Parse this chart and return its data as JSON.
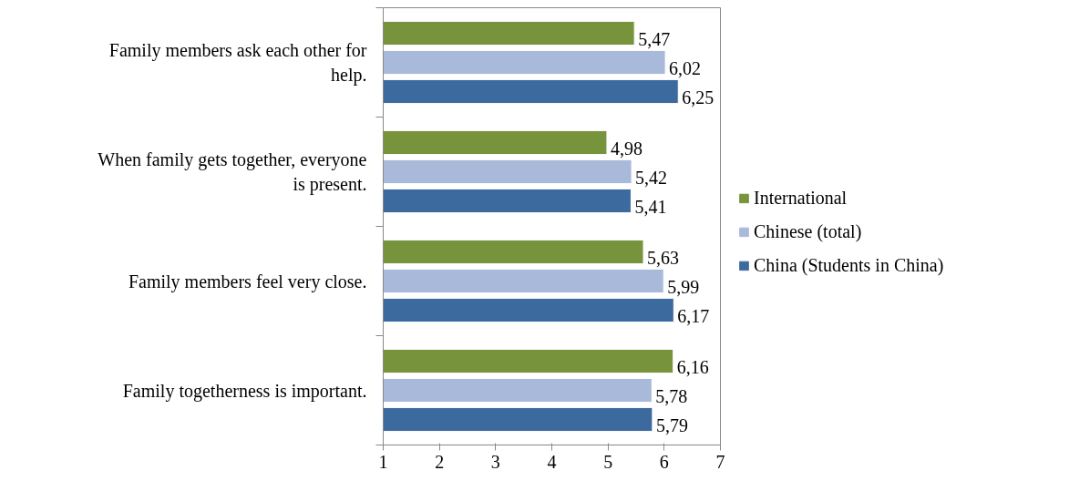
{
  "chart_data": {
    "type": "bar",
    "orientation": "horizontal",
    "categories": [
      "Family members ask each other for help.",
      "When family gets together, everyone is present.",
      "Family members feel very close.",
      "Family togetherness is important."
    ],
    "series": [
      {
        "name": "International",
        "color": "#77933c",
        "values": [
          5.47,
          4.98,
          5.63,
          6.16
        ],
        "value_labels": [
          "5,47",
          "4,98",
          "5,63",
          "6,16"
        ]
      },
      {
        "name": "Chinese (total)",
        "color": "#a9b9d9",
        "values": [
          6.02,
          5.42,
          5.99,
          5.78
        ],
        "value_labels": [
          "6,02",
          "5,42",
          "5,99",
          "5,78"
        ]
      },
      {
        "name": "China (Students in China)",
        "color": "#3d6a9e",
        "values": [
          6.25,
          5.41,
          6.17,
          5.79
        ],
        "value_labels": [
          "6,25",
          "5,41",
          "6,17",
          "5,79"
        ]
      }
    ],
    "xlim": [
      1,
      7
    ],
    "xticks": [
      1,
      2,
      3,
      4,
      5,
      6,
      7
    ],
    "legend": "right"
  }
}
